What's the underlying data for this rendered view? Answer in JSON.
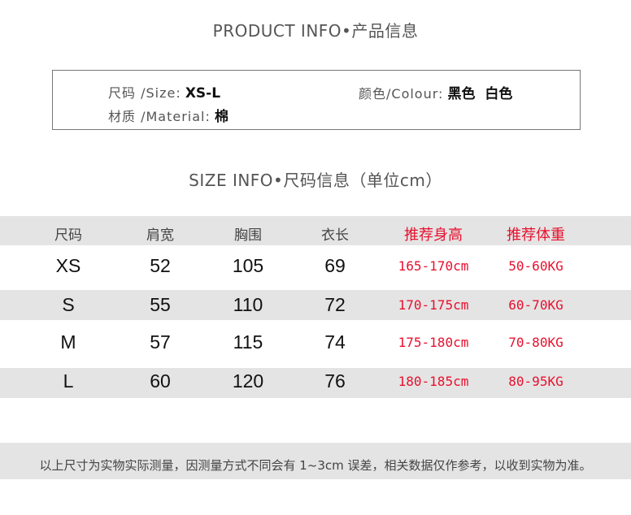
{
  "product_info": {
    "title": "PRODUCT INFO•产品信息",
    "size_label": "尺码 /Size:",
    "size_value": "XS-L",
    "material_label": "材质 /Material:",
    "material_value": "棉",
    "colour_label": "颜色/Colour:",
    "colour_value": "黑色  白色"
  },
  "size_info": {
    "title": "SIZE INFO•尺码信息（单位cm）",
    "headers": [
      "尺码",
      "肩宽",
      "胸围",
      "衣长",
      "推荐身高",
      "推荐体重"
    ],
    "rows": [
      [
        "XS",
        "52",
        "105",
        "69",
        "165-170cm",
        "50-60KG"
      ],
      [
        "S",
        "55",
        "110",
        "72",
        "170-175cm",
        "60-70KG"
      ],
      [
        "M",
        "57",
        "115",
        "74",
        "175-180cm",
        "70-80KG"
      ],
      [
        "L",
        "60",
        "120",
        "76",
        "180-185cm",
        "80-95KG"
      ]
    ]
  },
  "footer": "以上尺寸为实物实际测量，因测量方式不同会有 1~3cm 误差，相关数据仅作参考，以收到实物为准。",
  "colors": {
    "accent": "#e8102e",
    "band": "#e4e4e4"
  }
}
